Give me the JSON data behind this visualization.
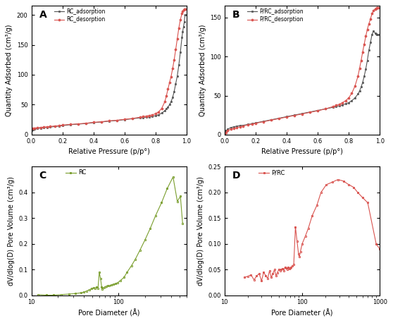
{
  "panel_A": {
    "label": "A",
    "xlabel": "Relative Pressure (p/p°)",
    "ylabel": "Quantity Adsorbed (cm³/g)",
    "ylim": [
      0,
      215
    ],
    "yticks": [
      0,
      50,
      100,
      150,
      200
    ],
    "xlim": [
      0.0,
      1.0
    ],
    "xticks": [
      0.0,
      0.2,
      0.4,
      0.6,
      0.8,
      1.0
    ],
    "legend": [
      "RC_adsorption",
      "RC_desorption"
    ],
    "adsorption_color": "#555555",
    "desorption_color": "#d9534f",
    "adsorption_x": [
      0.002,
      0.01,
      0.02,
      0.04,
      0.06,
      0.08,
      0.1,
      0.12,
      0.15,
      0.18,
      0.2,
      0.25,
      0.3,
      0.35,
      0.4,
      0.45,
      0.5,
      0.55,
      0.6,
      0.65,
      0.7,
      0.72,
      0.74,
      0.76,
      0.78,
      0.8,
      0.82,
      0.84,
      0.86,
      0.87,
      0.88,
      0.89,
      0.9,
      0.91,
      0.92,
      0.93,
      0.94,
      0.95,
      0.96,
      0.97,
      0.975,
      0.98,
      0.985,
      0.99
    ],
    "adsorption_y": [
      7.0,
      8.0,
      9.0,
      10.0,
      11.0,
      11.5,
      12.0,
      12.5,
      13.5,
      14.2,
      15.0,
      16.5,
      17.5,
      18.5,
      20.0,
      21.0,
      22.5,
      23.5,
      25.0,
      26.5,
      28.0,
      28.5,
      29.0,
      29.5,
      30.5,
      31.5,
      33.0,
      36.0,
      40.0,
      43.0,
      46.0,
      50.0,
      55.0,
      62.0,
      72.0,
      85.0,
      98.0,
      116.0,
      138.0,
      162.0,
      172.0,
      180.0,
      188.0,
      200.0
    ],
    "desorption_x": [
      0.002,
      0.01,
      0.02,
      0.04,
      0.06,
      0.08,
      0.1,
      0.12,
      0.15,
      0.18,
      0.2,
      0.25,
      0.3,
      0.35,
      0.4,
      0.45,
      0.5,
      0.55,
      0.6,
      0.65,
      0.7,
      0.72,
      0.74,
      0.76,
      0.78,
      0.8,
      0.82,
      0.84,
      0.86,
      0.87,
      0.88,
      0.89,
      0.9,
      0.91,
      0.92,
      0.93,
      0.94,
      0.95,
      0.96,
      0.97,
      0.975,
      0.98,
      0.985,
      0.99
    ],
    "desorption_y": [
      10.0,
      10.5,
      11.0,
      11.5,
      12.0,
      12.5,
      13.0,
      13.5,
      14.5,
      15.0,
      16.0,
      17.0,
      18.0,
      19.0,
      20.5,
      21.5,
      23.0,
      24.0,
      25.5,
      27.0,
      29.0,
      30.0,
      31.0,
      32.0,
      33.0,
      35.0,
      38.0,
      44.0,
      55.0,
      65.0,
      76.0,
      87.0,
      97.0,
      110.0,
      125.0,
      142.0,
      160.0,
      178.0,
      192.0,
      202.0,
      206.0,
      208.0,
      209.0,
      210.0
    ]
  },
  "panel_B": {
    "label": "B",
    "xlabel": "Relative Pressure (p/p°)",
    "ylabel": "Quantity Adsorbed (cm³/g)",
    "ylim": [
      0,
      165
    ],
    "yticks": [
      0,
      50,
      100,
      150
    ],
    "xlim": [
      0.0,
      1.0
    ],
    "xticks": [
      0.0,
      0.2,
      0.4,
      0.6,
      0.8,
      1.0
    ],
    "legend": [
      "P/RC_adsorption",
      "P/RC_desorption"
    ],
    "adsorption_color": "#555555",
    "desorption_color": "#d9534f",
    "adsorption_x": [
      0.002,
      0.01,
      0.02,
      0.04,
      0.06,
      0.08,
      0.1,
      0.12,
      0.15,
      0.18,
      0.2,
      0.25,
      0.3,
      0.35,
      0.4,
      0.45,
      0.5,
      0.55,
      0.6,
      0.65,
      0.7,
      0.72,
      0.74,
      0.76,
      0.78,
      0.8,
      0.82,
      0.84,
      0.86,
      0.87,
      0.88,
      0.89,
      0.9,
      0.91,
      0.92,
      0.93,
      0.94,
      0.95,
      0.96,
      0.97,
      0.975,
      0.98,
      0.985,
      0.99
    ],
    "adsorption_y": [
      3.0,
      5.0,
      7.0,
      9.0,
      10.0,
      11.0,
      11.5,
      12.0,
      13.0,
      14.0,
      15.0,
      17.0,
      19.0,
      21.0,
      23.0,
      25.0,
      27.0,
      29.0,
      31.0,
      33.0,
      35.0,
      36.0,
      37.0,
      38.0,
      39.5,
      41.0,
      43.5,
      47.0,
      52.0,
      56.0,
      61.0,
      67.0,
      75.0,
      84.0,
      95.0,
      108.0,
      118.0,
      128.0,
      133.0,
      130.0,
      129.0,
      128.5,
      128.0,
      128.0
    ],
    "desorption_x": [
      0.002,
      0.01,
      0.02,
      0.04,
      0.06,
      0.08,
      0.1,
      0.12,
      0.15,
      0.18,
      0.2,
      0.25,
      0.3,
      0.35,
      0.4,
      0.45,
      0.5,
      0.55,
      0.6,
      0.65,
      0.7,
      0.72,
      0.74,
      0.76,
      0.78,
      0.8,
      0.82,
      0.84,
      0.86,
      0.87,
      0.88,
      0.89,
      0.9,
      0.91,
      0.92,
      0.93,
      0.94,
      0.95,
      0.96,
      0.97,
      0.975,
      0.98,
      0.985,
      0.99
    ],
    "desorption_y": [
      1.5,
      3.0,
      5.0,
      7.0,
      8.0,
      9.0,
      10.0,
      11.0,
      12.5,
      13.5,
      14.5,
      16.5,
      18.5,
      20.5,
      22.5,
      24.5,
      26.5,
      28.5,
      30.5,
      33.0,
      36.0,
      37.5,
      39.0,
      41.0,
      43.5,
      47.0,
      53.0,
      62.0,
      75.0,
      85.0,
      95.0,
      106.0,
      116.0,
      126.0,
      135.0,
      142.0,
      148.0,
      155.0,
      159.0,
      161.0,
      162.0,
      162.5,
      163.0,
      163.0
    ]
  },
  "panel_C": {
    "label": "C",
    "xlabel": "Pore Diameter (Å)",
    "ylabel": "dV/dlog(D) Pore Volume (cm³/g)",
    "ylim": [
      0.0,
      0.5
    ],
    "yticks": [
      0.0,
      0.1,
      0.2,
      0.3,
      0.4
    ],
    "xlim_log": [
      10,
      600
    ],
    "xticks_log": [
      10,
      100
    ],
    "legend": [
      "RC"
    ],
    "color": "#7a9e2e",
    "x": [
      12,
      15,
      18,
      22,
      27,
      32,
      37,
      40,
      43,
      46,
      49,
      52,
      54,
      56,
      58,
      60,
      62,
      64,
      65,
      67,
      70,
      72,
      75,
      78,
      82,
      87,
      92,
      98,
      105,
      115,
      125,
      140,
      155,
      175,
      200,
      230,
      265,
      310,
      360,
      420,
      470,
      510,
      540
    ],
    "y": [
      0.003,
      0.001,
      0.001,
      0.003,
      0.005,
      0.007,
      0.01,
      0.013,
      0.017,
      0.022,
      0.026,
      0.03,
      0.028,
      0.032,
      0.028,
      0.09,
      0.065,
      0.032,
      0.025,
      0.03,
      0.033,
      0.035,
      0.037,
      0.038,
      0.04,
      0.043,
      0.045,
      0.05,
      0.058,
      0.07,
      0.09,
      0.115,
      0.14,
      0.175,
      0.215,
      0.26,
      0.31,
      0.36,
      0.415,
      0.46,
      0.365,
      0.385,
      0.28
    ]
  },
  "panel_D": {
    "label": "D",
    "xlabel": "Pore Diameter (Å)",
    "ylabel": "dV/dlog(D) Pore Volume (cm³/g)",
    "ylim": [
      0.0,
      0.25
    ],
    "yticks": [
      0.0,
      0.05,
      0.1,
      0.15,
      0.2,
      0.25
    ],
    "xlim_log": [
      10,
      1000
    ],
    "legend": [
      "P/RC"
    ],
    "color": "#d9534f",
    "x": [
      18,
      20,
      22,
      24,
      26,
      28,
      30,
      32,
      34,
      36,
      38,
      40,
      42,
      44,
      46,
      48,
      50,
      52,
      54,
      56,
      58,
      60,
      62,
      64,
      66,
      68,
      70,
      72,
      75,
      78,
      82,
      86,
      90,
      92,
      95,
      100,
      110,
      120,
      135,
      155,
      175,
      205,
      245,
      290,
      340,
      400,
      460,
      520,
      600,
      700,
      900,
      1000
    ],
    "y": [
      0.035,
      0.037,
      0.04,
      0.03,
      0.038,
      0.042,
      0.028,
      0.045,
      0.038,
      0.033,
      0.048,
      0.035,
      0.042,
      0.05,
      0.038,
      0.044,
      0.05,
      0.048,
      0.05,
      0.052,
      0.048,
      0.055,
      0.053,
      0.05,
      0.055,
      0.052,
      0.053,
      0.055,
      0.057,
      0.06,
      0.133,
      0.105,
      0.08,
      0.075,
      0.085,
      0.1,
      0.115,
      0.13,
      0.155,
      0.175,
      0.2,
      0.215,
      0.22,
      0.225,
      0.222,
      0.215,
      0.21,
      0.2,
      0.19,
      0.18,
      0.1,
      0.09
    ]
  }
}
